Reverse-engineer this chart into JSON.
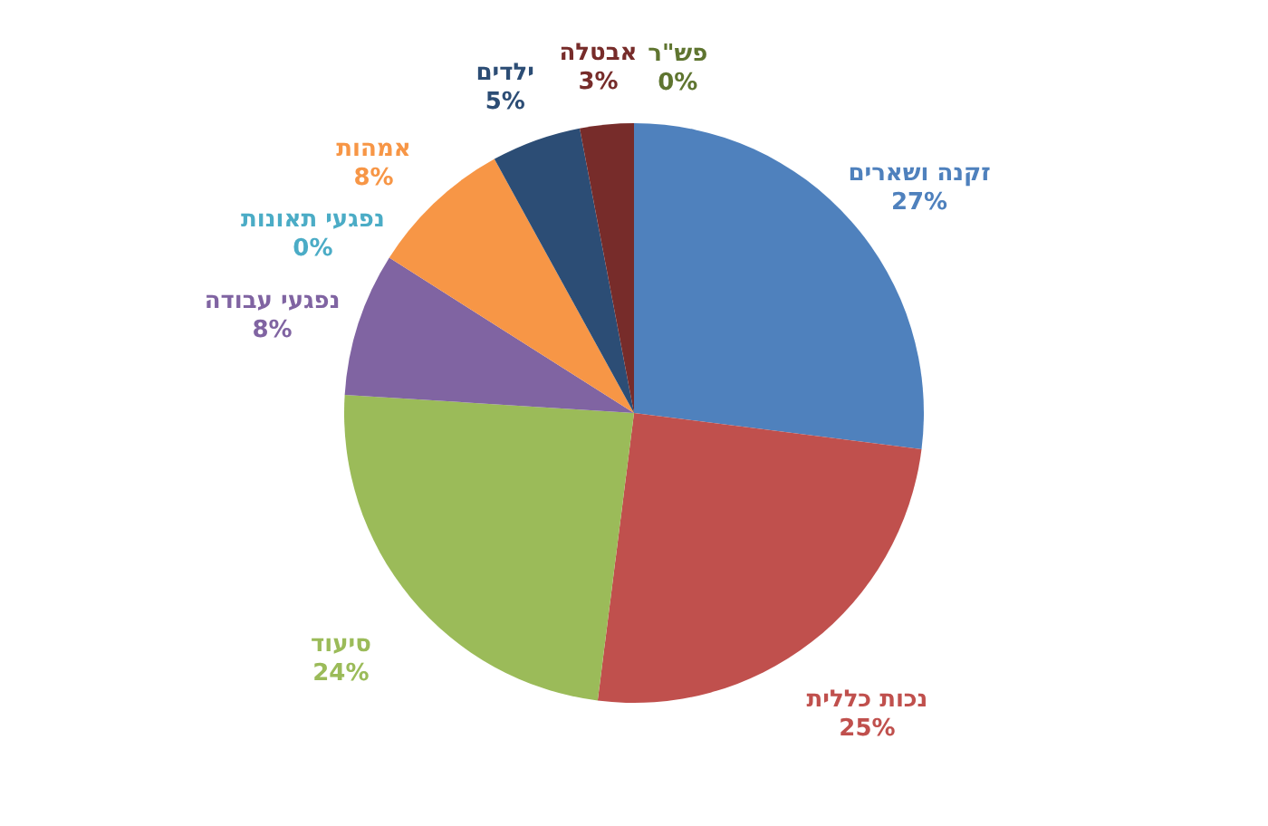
{
  "chart_data": {
    "type": "pie",
    "categories": [
      "זקנה ושארים",
      "נכות כללית",
      "סיעוד",
      "נפגעי עבודה",
      "נפגעי תאונות",
      "אמהות",
      "ילדים",
      "אבטלה",
      "פש\"ר"
    ],
    "values": [
      27,
      25,
      24,
      8,
      0,
      8,
      5,
      3,
      0
    ],
    "value_labels": [
      "27%",
      "25%",
      "24%",
      "8%",
      "0%",
      "8%",
      "5%",
      "3%",
      "0%"
    ],
    "colors": [
      "#4f81bd",
      "#c0504d",
      "#9bbb59",
      "#8064a2",
      "#4bacc6",
      "#f79646",
      "#2c4d75",
      "#772c2a",
      "#5f7530"
    ]
  }
}
